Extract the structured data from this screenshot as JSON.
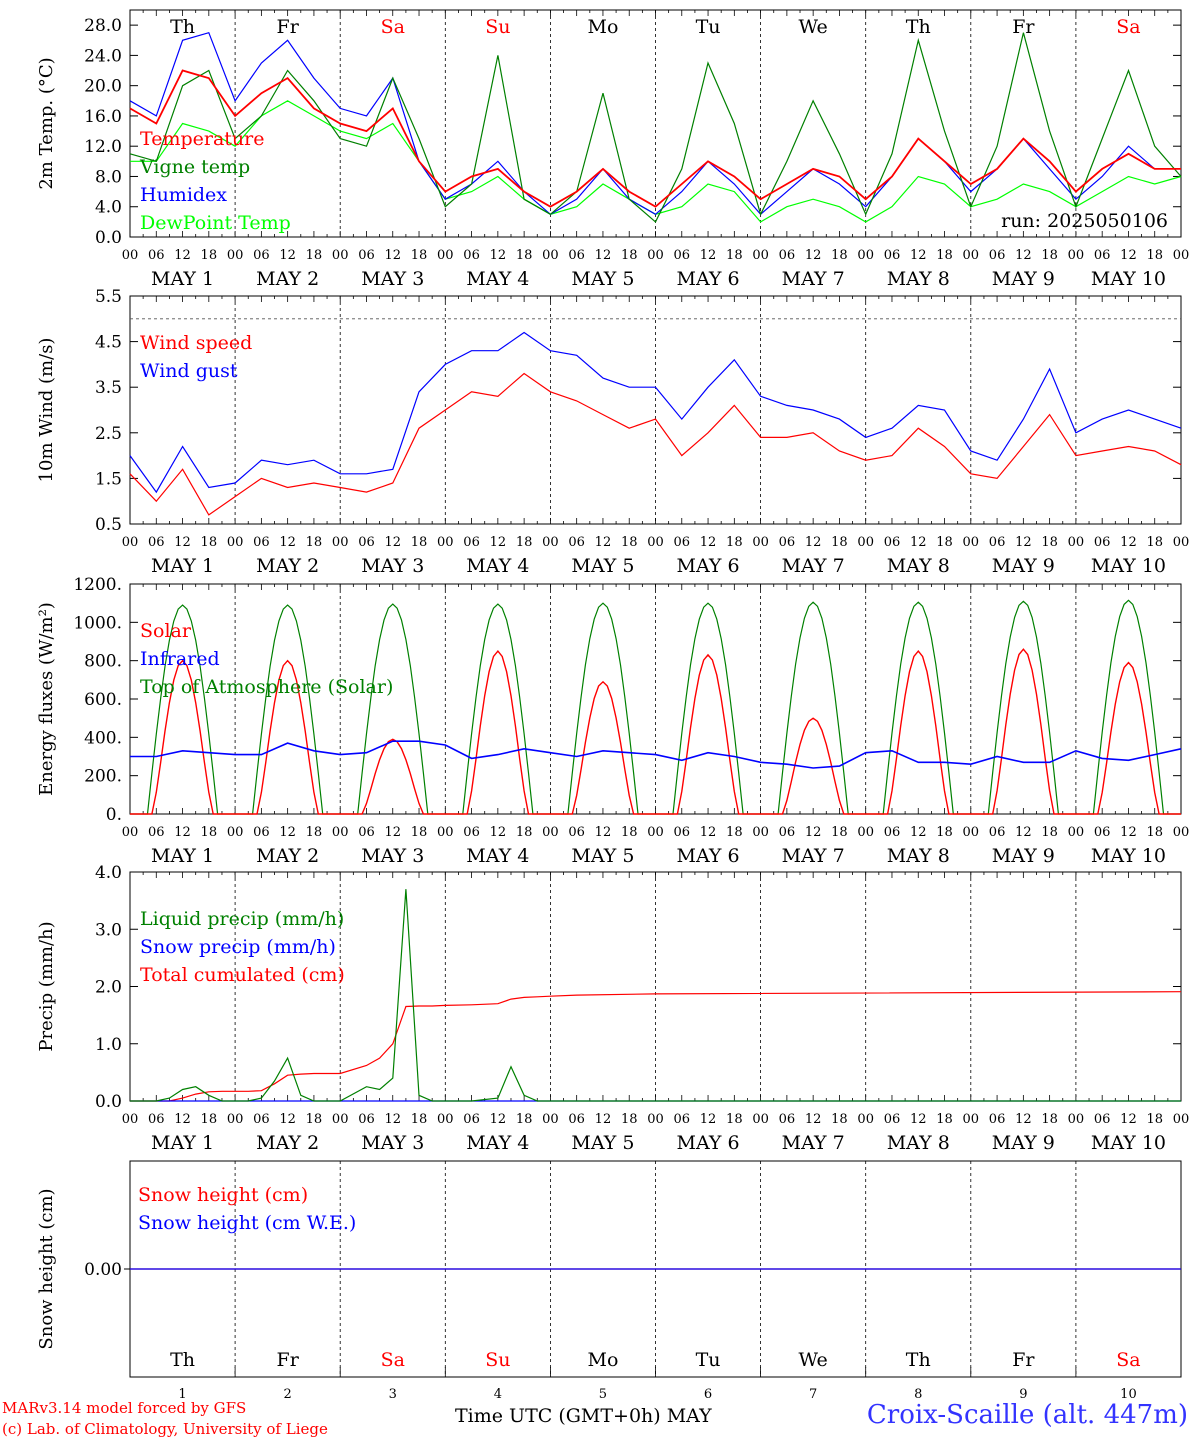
{
  "chart_data": [
    {
      "id": "temp",
      "type": "line",
      "ylabel": "2m Temp. (°C)",
      "ylim": [
        0,
        30
      ],
      "yticks": [
        "0.0",
        "4.0",
        "8.0",
        "12.0",
        "16.0",
        "20.0",
        "24.0",
        "28.0"
      ],
      "ytick_values": [
        0,
        4,
        8,
        12,
        16,
        20,
        24,
        28
      ],
      "legend": [
        "Temperature",
        "Vigne temp",
        "Humidex",
        "DewPoint Temp"
      ],
      "annotation": "run: 2025050106",
      "x_hours": [
        0,
        6,
        12,
        18,
        24,
        30,
        36,
        42,
        48,
        54,
        60,
        66,
        72,
        78,
        84,
        90,
        96,
        102,
        108,
        114,
        120,
        126,
        132,
        138,
        144,
        150,
        156,
        162,
        168,
        174,
        180,
        186,
        192,
        198,
        204,
        210,
        216,
        222,
        228,
        234,
        240
      ],
      "series": [
        {
          "name": "Temperature",
          "color": "#ff0000",
          "values": [
            17,
            15,
            22,
            21,
            16,
            19,
            21,
            17,
            15,
            14,
            17,
            10,
            6,
            8,
            9,
            6,
            4,
            6,
            9,
            6,
            4,
            7,
            10,
            8,
            5,
            7,
            9,
            8,
            5,
            8,
            13,
            10,
            7,
            9,
            13,
            10,
            6,
            9,
            11,
            9,
            9
          ]
        },
        {
          "name": "Vigne temp",
          "color": "#008000",
          "values": [
            11,
            10,
            20,
            22,
            13,
            16,
            22,
            18,
            13,
            12,
            21,
            13,
            4,
            7,
            24,
            5,
            3,
            6,
            19,
            5,
            2,
            9,
            23,
            15,
            3,
            10,
            18,
            11,
            3,
            11,
            26,
            14,
            4,
            12,
            27,
            14,
            4,
            13,
            22,
            12,
            8
          ]
        },
        {
          "name": "Humidex",
          "color": "#0000ff",
          "values": [
            18,
            16,
            26,
            27,
            18,
            23,
            26,
            21,
            17,
            16,
            21,
            10,
            5,
            7,
            10,
            6,
            3,
            5,
            9,
            5,
            3,
            6,
            10,
            7,
            3,
            6,
            9,
            7,
            4,
            8,
            13,
            10,
            6,
            9,
            13,
            9,
            5,
            8,
            12,
            9,
            9
          ]
        },
        {
          "name": "DewPoint Temp",
          "color": "#00ff00",
          "values": [
            10,
            10,
            15,
            14,
            12,
            16,
            18,
            16,
            14,
            13,
            15,
            10,
            5,
            6,
            8,
            5,
            3,
            4,
            7,
            5,
            3,
            4,
            7,
            6,
            2,
            4,
            5,
            4,
            2,
            4,
            8,
            7,
            4,
            5,
            7,
            6,
            4,
            6,
            8,
            7,
            8
          ]
        }
      ]
    },
    {
      "id": "wind",
      "type": "line",
      "ylabel": "10m Wind (m/s)",
      "ylim": [
        0.5,
        5.5
      ],
      "yticks": [
        "0.5",
        "1.5",
        "2.5",
        "3.5",
        "4.5",
        "5.5"
      ],
      "ytick_values": [
        0.5,
        1.5,
        2.5,
        3.5,
        4.5,
        5.5
      ],
      "ref_line": 5.0,
      "legend": [
        "Wind speed",
        "Wind gust"
      ],
      "x_hours": [
        0,
        6,
        12,
        18,
        24,
        30,
        36,
        42,
        48,
        54,
        60,
        66,
        72,
        78,
        84,
        90,
        96,
        102,
        108,
        114,
        120,
        126,
        132,
        138,
        144,
        150,
        156,
        162,
        168,
        174,
        180,
        186,
        192,
        198,
        204,
        210,
        216,
        222,
        228,
        234,
        240
      ],
      "series": [
        {
          "name": "Wind speed",
          "color": "#ff0000",
          "values": [
            1.6,
            1.0,
            1.7,
            0.7,
            1.1,
            1.5,
            1.3,
            1.4,
            1.3,
            1.2,
            1.4,
            2.6,
            3.0,
            3.4,
            3.3,
            3.8,
            3.4,
            3.2,
            2.9,
            2.6,
            2.8,
            2.0,
            2.5,
            3.1,
            2.4,
            2.4,
            2.5,
            2.1,
            1.9,
            2.0,
            2.6,
            2.2,
            1.6,
            1.5,
            2.2,
            2.9,
            2.0,
            2.1,
            2.2,
            2.1,
            1.8
          ]
        },
        {
          "name": "Wind gust",
          "color": "#0000ff",
          "values": [
            2.0,
            1.2,
            2.2,
            1.3,
            1.4,
            1.9,
            1.8,
            1.9,
            1.6,
            1.6,
            1.7,
            3.4,
            4.0,
            4.3,
            4.3,
            4.7,
            4.3,
            4.2,
            3.7,
            3.5,
            3.5,
            2.8,
            3.5,
            4.1,
            3.3,
            3.1,
            3.0,
            2.8,
            2.4,
            2.6,
            3.1,
            3.0,
            2.1,
            1.9,
            2.8,
            3.9,
            2.5,
            2.8,
            3.0,
            2.8,
            2.6
          ]
        }
      ]
    },
    {
      "id": "energy",
      "type": "line",
      "ylabel": "Energy fluxes (W/m²)",
      "ylim": [
        0,
        1200
      ],
      "yticks": [
        "0.",
        "200.",
        "400.",
        "600.",
        "800.",
        "1000.",
        "1200."
      ],
      "ytick_values": [
        0,
        200,
        400,
        600,
        800,
        1000,
        1200
      ],
      "legend": [
        "Solar",
        "Infrared",
        "Top of Atmosphere (Solar)"
      ],
      "toa_peaks": [
        1090,
        1090,
        1095,
        1095,
        1100,
        1100,
        1105,
        1105,
        1110,
        1115
      ],
      "solar_peaks": [
        800,
        800,
        390,
        850,
        690,
        830,
        500,
        850,
        860,
        790
      ],
      "infrared": [
        300,
        300,
        330,
        320,
        310,
        310,
        370,
        330,
        310,
        320,
        380,
        380,
        360,
        290,
        310,
        340,
        320,
        300,
        330,
        320,
        310,
        280,
        320,
        300,
        270,
        260,
        240,
        250,
        320,
        330,
        270,
        270,
        260,
        300,
        270,
        270,
        330,
        290,
        280,
        310,
        340
      ],
      "series_colors": {
        "Solar": "#ff0000",
        "Infrared": "#0000ff",
        "Top of Atmosphere (Solar)": "#008000"
      }
    },
    {
      "id": "precip",
      "type": "line",
      "ylabel": "Precip (mm/h)",
      "ylim": [
        0,
        4
      ],
      "yticks": [
        "0.0",
        "1.0",
        "2.0",
        "3.0",
        "4.0"
      ],
      "ytick_values": [
        0,
        1,
        2,
        3,
        4
      ],
      "legend": [
        "Liquid precip (mm/h)",
        "Snow precip (mm/h)",
        "Total cumulated (cm)"
      ],
      "x_hours": [
        0,
        6,
        9,
        12,
        15,
        18,
        21,
        24,
        27,
        30,
        33,
        36,
        39,
        42,
        48,
        54,
        57,
        60,
        63,
        66,
        69,
        72,
        78,
        84,
        87,
        90,
        93,
        96,
        102,
        120,
        240
      ],
      "series": [
        {
          "name": "Liquid precip (mm/h)",
          "color": "#008000",
          "values": [
            0,
            0,
            0.05,
            0.2,
            0.25,
            0.1,
            0,
            0,
            0,
            0.05,
            0.35,
            0.75,
            0.1,
            0,
            0,
            0.25,
            0.2,
            0.4,
            3.7,
            0.1,
            0,
            0,
            0,
            0.05,
            0.6,
            0.1,
            0,
            0,
            0,
            0,
            0
          ]
        },
        {
          "name": "Snow precip (mm/h)",
          "color": "#0000ff",
          "values": [
            0,
            0,
            0,
            0,
            0,
            0,
            0,
            0,
            0,
            0,
            0,
            0,
            0,
            0,
            0,
            0,
            0,
            0,
            0,
            0,
            0,
            0,
            0,
            0,
            0,
            0,
            0,
            0,
            0,
            0,
            0
          ]
        },
        {
          "name": "Total cumulated (cm)",
          "color": "#ff0000",
          "values": [
            0,
            0,
            0,
            0.05,
            0.12,
            0.16,
            0.17,
            0.17,
            0.17,
            0.18,
            0.3,
            0.45,
            0.47,
            0.48,
            0.48,
            0.62,
            0.75,
            1.0,
            1.65,
            1.66,
            1.66,
            1.67,
            1.68,
            1.7,
            1.78,
            1.81,
            1.82,
            1.83,
            1.85,
            1.87,
            1.91
          ]
        }
      ]
    },
    {
      "id": "snow",
      "type": "line",
      "ylabel": "Snow height (cm)",
      "yticks": [
        "0.00"
      ],
      "legend": [
        "Snow height (cm)",
        "Snow height (cm W.E.)"
      ],
      "series": [
        {
          "name": "Snow height (cm)",
          "color": "#ff0000",
          "values": [
            0,
            0
          ]
        },
        {
          "name": "Snow height (cm W.E.)",
          "color": "#0000ff",
          "values": [
            0,
            0
          ]
        }
      ]
    }
  ],
  "days": [
    "Th",
    "Fr",
    "Sa",
    "Su",
    "Mo",
    "Tu",
    "We",
    "Th",
    "Fr",
    "Sa"
  ],
  "weekend_flags": [
    false,
    false,
    true,
    true,
    false,
    false,
    false,
    false,
    false,
    true
  ],
  "date_labels": [
    "MAY  1",
    "MAY  2",
    "MAY  3",
    "MAY  4",
    "MAY  5",
    "MAY  6",
    "MAY  7",
    "MAY  8",
    "MAY  9",
    "MAY 10"
  ],
  "day_numbers": [
    "1",
    "2",
    "3",
    "4",
    "5",
    "6",
    "7",
    "8",
    "9",
    "10"
  ],
  "hour_ticks": [
    "00",
    "06",
    "12",
    "18"
  ],
  "hour_end": "00",
  "colors": {
    "weekend": "#ff0000",
    "weekday": "#000000",
    "legend_red": "#ff0000",
    "legend_green": "#008000",
    "legend_blue": "#0000ff",
    "legend_lime": "#00ff00"
  },
  "footer": {
    "model": "MARv3.14 model forced by GFS",
    "credit": "(c) Lab. of Climatology, University of Liege",
    "axis_title": "Time UTC (GMT+0h) MAY",
    "station": "Croix-Scaille (alt. 447m)"
  }
}
